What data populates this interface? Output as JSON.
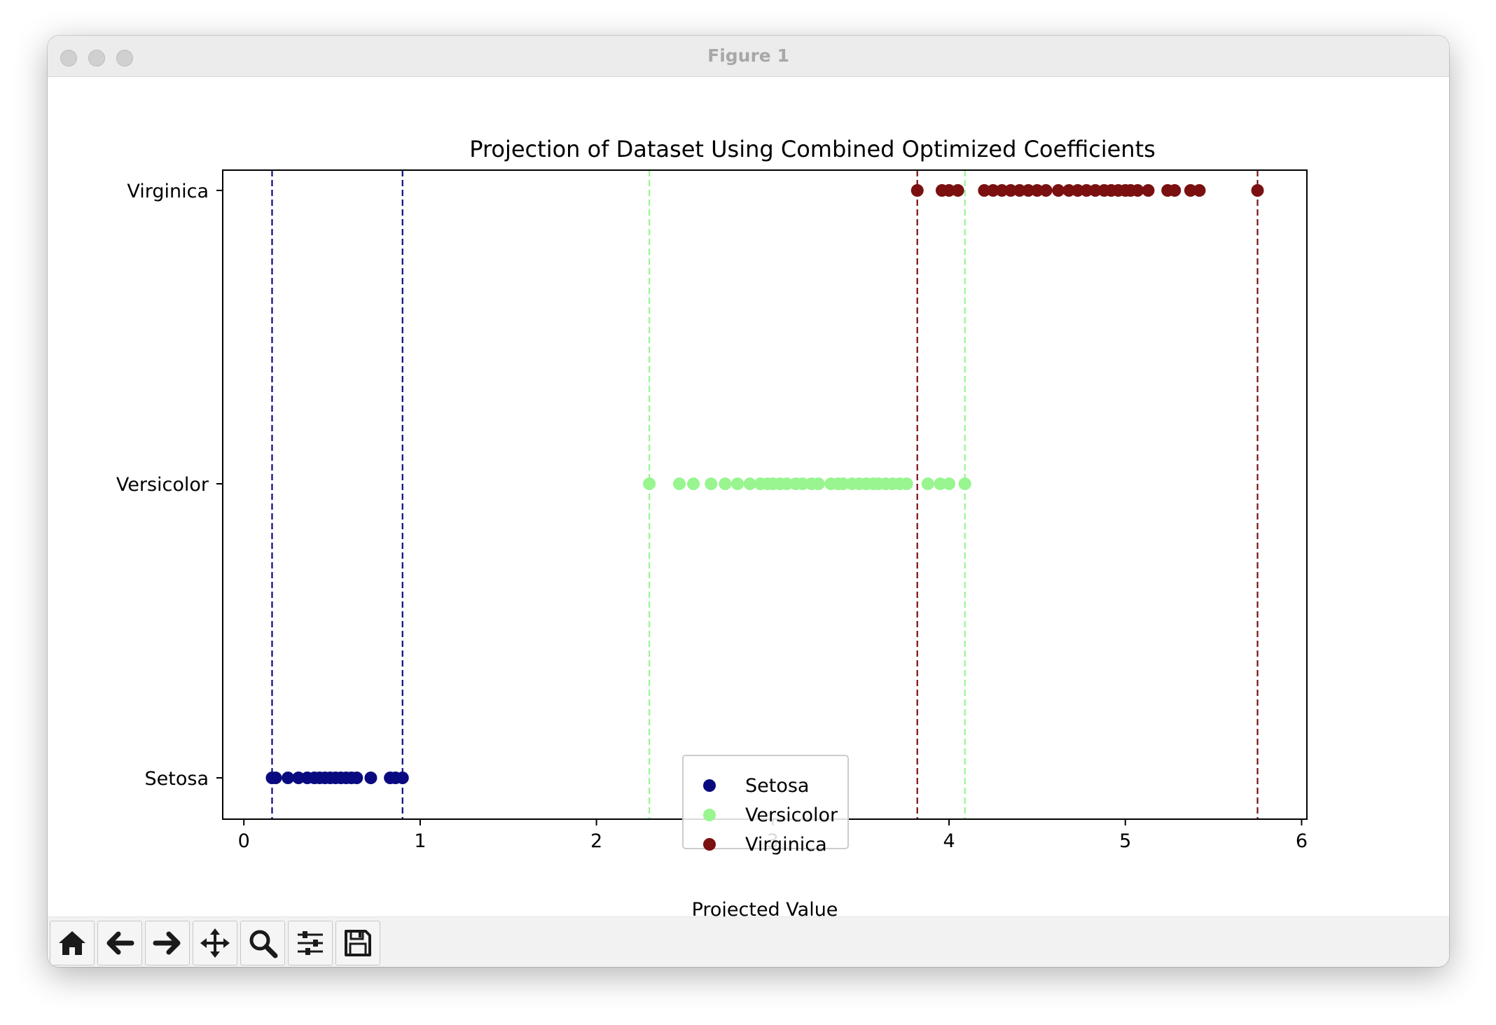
{
  "window": {
    "title": "Figure 1"
  },
  "toolbar": {
    "buttons": [
      {
        "name": "home-button",
        "icon": "home-icon"
      },
      {
        "name": "back-button",
        "icon": "arrow-left-icon"
      },
      {
        "name": "forward-button",
        "icon": "arrow-right-icon"
      },
      {
        "name": "pan-button",
        "icon": "move-icon"
      },
      {
        "name": "zoom-button",
        "icon": "magnifier-icon"
      },
      {
        "name": "configure-subplots-button",
        "icon": "sliders-icon"
      },
      {
        "name": "save-button",
        "icon": "floppy-disk-icon"
      }
    ]
  },
  "chart_data": {
    "type": "scatter",
    "title": "Projection of Dataset Using Combined Optimized Coefficients",
    "xlabel": "Projected Value",
    "ylabel": "",
    "xlim": [
      -0.12,
      6.03
    ],
    "xticks": [
      0,
      1,
      2,
      3,
      4,
      5,
      6
    ],
    "categories": [
      "Setosa",
      "Versicolor",
      "Virginica"
    ],
    "grid": false,
    "legend_position": "lower-center",
    "series": [
      {
        "name": "Setosa",
        "category": "Setosa",
        "color": "#0a0a80",
        "x": [
          0.16,
          0.18,
          0.25,
          0.31,
          0.36,
          0.4,
          0.43,
          0.46,
          0.49,
          0.52,
          0.55,
          0.58,
          0.61,
          0.64,
          0.72,
          0.83,
          0.86,
          0.9
        ],
        "bounds": [
          0.16,
          0.9
        ]
      },
      {
        "name": "Versicolor",
        "category": "Versicolor",
        "color": "#98f590",
        "x": [
          2.3,
          2.47,
          2.55,
          2.65,
          2.73,
          2.8,
          2.87,
          2.93,
          2.97,
          3.0,
          3.04,
          3.08,
          3.13,
          3.17,
          3.22,
          3.26,
          3.33,
          3.37,
          3.4,
          3.45,
          3.49,
          3.53,
          3.57,
          3.6,
          3.64,
          3.68,
          3.72,
          3.76,
          3.88,
          3.95,
          4.0,
          4.09
        ],
        "bounds": [
          2.3,
          4.09
        ]
      },
      {
        "name": "Virginica",
        "category": "Virginica",
        "color": "#7a1010",
        "x": [
          3.82,
          3.96,
          4.0,
          4.05,
          4.2,
          4.25,
          4.3,
          4.35,
          4.4,
          4.45,
          4.5,
          4.55,
          4.62,
          4.68,
          4.73,
          4.78,
          4.83,
          4.88,
          4.92,
          4.96,
          5.0,
          5.03,
          5.07,
          5.13,
          5.24,
          5.28,
          5.37,
          5.42,
          5.75
        ],
        "bounds": [
          3.82,
          5.75
        ]
      }
    ]
  }
}
